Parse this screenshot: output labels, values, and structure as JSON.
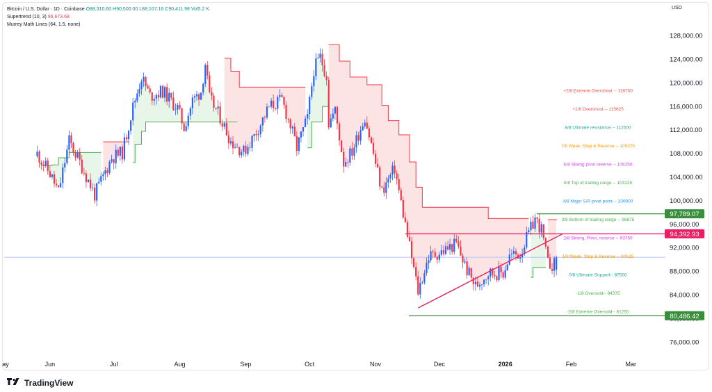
{
  "legend": {
    "symbol": "Bitcoin / U.S. Dollar · 1D · Coinbase",
    "ohlc": "O88,310.60  H90,500.00  L88,107.16  C90,411.98  Vol5.2 K",
    "supertrend": "Supertrend (10, 3)",
    "supertrend_value": "96,673.68",
    "murrey": "Murrey Math Lines (64, 1.5, none)"
  },
  "currency": "USD",
  "brand": "TradingView",
  "colors": {
    "up": "#2962ff",
    "down": "#f23645",
    "st_up": "#4caf50",
    "st_down": "#f23645",
    "st_up_fill": "#e8f5e9",
    "st_down_fill": "#fde4e4",
    "green_line": "#388e3c",
    "pink_line": "#e91e63",
    "blue_line": "#b3c6f5"
  },
  "chart_data": {
    "type": "candlestick",
    "y_axis": {
      "ticks": [
        "128,000.00",
        "124,000.00",
        "120,000.00",
        "116,000.00",
        "112,000.00",
        "108,000.00",
        "104,000.00",
        "100,000.00",
        "96,000.00",
        "92,000.00",
        "88,000.00",
        "84,000.00",
        "80,000.00",
        "76,000.00"
      ],
      "tick_values": [
        128000,
        124000,
        120000,
        116000,
        112000,
        108000,
        104000,
        100000,
        96000,
        92000,
        88000,
        84000,
        80000,
        76000
      ]
    },
    "x_axis": {
      "labels": [
        "ay",
        "Jun",
        "Jul",
        "Aug",
        "Sep",
        "Oct",
        "Nov",
        "Dec",
        "2026",
        "Feb",
        "Mar"
      ],
      "bold": "2026"
    },
    "price_tags": [
      {
        "label": "97,789.07",
        "value": 97789.07,
        "color": "#388e3c"
      },
      {
        "label": "94,392.93",
        "value": 94392.93,
        "color": "#e91e63"
      },
      {
        "label": "80,486.42",
        "value": 80486.42,
        "color": "#388e3c"
      }
    ],
    "murrey_levels": [
      {
        "label": "+2/8 Extreme Overshoot --  118750",
        "value": 118750,
        "color": "#ef5350"
      },
      {
        "label": "+1/8 Overshoot --  115625",
        "value": 115625,
        "color": "#ef5350"
      },
      {
        "label": "8/8 Ultimate resistance --  112500",
        "value": 112500,
        "color": "#26a69a"
      },
      {
        "label": "7/8 Weak, Stop & Reverse --  109375",
        "value": 109375,
        "color": "#ff9800"
      },
      {
        "label": "6/8 Strong pivot reverse --  106250",
        "value": 106250,
        "color": "#e040fb"
      },
      {
        "label": "5/8 Top of trading range --  103125",
        "value": 103125,
        "color": "#4caf50"
      },
      {
        "label": "4/8 Major S/R pivot point --  100000",
        "value": 100000,
        "color": "#2196f3"
      },
      {
        "label": "3/8 Bottom of trading range --  96875",
        "value": 96875,
        "color": "#4caf50"
      },
      {
        "label": "2/8 Strong, Pivot, reverse --  93750",
        "value": 93750,
        "color": "#e040fb"
      },
      {
        "label": "1/8 Weak, Stop & Reverse --  90625",
        "value": 90625,
        "color": "#ff9800"
      },
      {
        "label": "0/8 Ultimate Support--  87500",
        "value": 87500,
        "color": "#26a69a"
      },
      {
        "label": "-1/8 Oversold--  84375",
        "value": 84375,
        "color": "#4caf50"
      },
      {
        "label": "-2/8 Extreme Oversold--  81250",
        "value": 81250,
        "color": "#4caf50"
      }
    ],
    "horizontal_lines": [
      {
        "value": 97789.07,
        "color": "#388e3c"
      },
      {
        "value": 94392.93,
        "color": "#e91e63"
      },
      {
        "value": 80486.42,
        "color": "#388e3c"
      },
      {
        "value": 90411.98,
        "color": "#b3c6f5"
      }
    ],
    "trendline": {
      "from": {
        "x": "2025-11-21",
        "y": 81800
      },
      "to": {
        "x": "2026-01-28",
        "y": 94400
      },
      "color": "#e91e63"
    },
    "close_anchors": [
      [
        "2025-05-26",
        108000
      ],
      [
        "2025-06-01",
        104600
      ],
      [
        "2025-06-05",
        101500
      ],
      [
        "2025-06-10",
        110200
      ],
      [
        "2025-06-16",
        105800
      ],
      [
        "2025-06-22",
        101000
      ],
      [
        "2025-06-30",
        107300
      ],
      [
        "2025-07-05",
        108200
      ],
      [
        "2025-07-10",
        116000
      ],
      [
        "2025-07-14",
        121000
      ],
      [
        "2025-07-18",
        117800
      ],
      [
        "2025-07-24",
        118600
      ],
      [
        "2025-07-31",
        115700
      ],
      [
        "2025-08-03",
        112500
      ],
      [
        "2025-08-07",
        117000
      ],
      [
        "2025-08-11",
        118600
      ],
      [
        "2025-08-13",
        123300
      ],
      [
        "2025-08-15",
        117400
      ],
      [
        "2025-08-20",
        114200
      ],
      [
        "2025-08-25",
        110100
      ],
      [
        "2025-08-31",
        108300
      ],
      [
        "2025-09-05",
        111000
      ],
      [
        "2025-09-12",
        115900
      ],
      [
        "2025-09-18",
        117100
      ],
      [
        "2025-09-22",
        112700
      ],
      [
        "2025-09-25",
        109000
      ],
      [
        "2025-09-30",
        114000
      ],
      [
        "2025-10-03",
        122300
      ],
      [
        "2025-10-06",
        124400
      ],
      [
        "2025-10-09",
        121300
      ],
      [
        "2025-10-10",
        113200
      ],
      [
        "2025-10-13",
        115300
      ],
      [
        "2025-10-17",
        106500
      ],
      [
        "2025-10-21",
        108400
      ],
      [
        "2025-10-27",
        114300
      ],
      [
        "2025-11-04",
        101600
      ],
      [
        "2025-11-10",
        105500
      ],
      [
        "2025-11-13",
        99700
      ],
      [
        "2025-11-17",
        92200
      ],
      [
        "2025-11-21",
        84600
      ],
      [
        "2025-11-26",
        90500
      ],
      [
        "2025-12-02",
        91300
      ],
      [
        "2025-12-09",
        92700
      ],
      [
        "2025-12-14",
        88200
      ],
      [
        "2025-12-18",
        85500
      ],
      [
        "2025-12-24",
        87800
      ],
      [
        "2025-12-31",
        87700
      ],
      [
        "2026-01-03",
        90600
      ],
      [
        "2026-01-08",
        91000
      ],
      [
        "2026-01-13",
        95300
      ],
      [
        "2026-01-15",
        97000
      ],
      [
        "2026-01-18",
        95100
      ],
      [
        "2026-01-21",
        89300
      ],
      [
        "2026-01-24",
        89200
      ],
      [
        "2026-01-25",
        90400
      ]
    ],
    "supertrend_segments": [
      {
        "dir": "up",
        "points": [
          [
            "2025-05-28",
            106000
          ],
          [
            "2025-06-02",
            106100
          ],
          [
            "2025-06-05",
            107300
          ],
          [
            "2025-06-10",
            108200
          ],
          [
            "2025-06-25",
            108200
          ]
        ]
      },
      {
        "dir": "down",
        "points": [
          [
            "2025-06-26",
            110000
          ],
          [
            "2025-07-08",
            110000
          ]
        ]
      },
      {
        "dir": "up",
        "points": [
          [
            "2025-07-10",
            106500
          ],
          [
            "2025-07-11",
            109600
          ],
          [
            "2025-07-14",
            111800
          ],
          [
            "2025-07-16",
            113400
          ],
          [
            "2025-08-28",
            113400
          ]
        ]
      },
      {
        "dir": "down",
        "points": [
          [
            "2025-08-22",
            124200
          ],
          [
            "2025-08-25",
            122000
          ],
          [
            "2025-08-29",
            119300
          ],
          [
            "2025-09-29",
            119300
          ]
        ]
      },
      {
        "dir": "up",
        "points": [
          [
            "2025-09-30",
            109000
          ],
          [
            "2025-10-02",
            113400
          ],
          [
            "2025-10-07",
            116000
          ],
          [
            "2025-10-10",
            116000
          ]
        ]
      },
      {
        "dir": "down",
        "points": [
          [
            "2025-10-10",
            126500
          ],
          [
            "2025-10-15",
            123700
          ],
          [
            "2025-10-20",
            121000
          ],
          [
            "2025-10-28",
            119700
          ],
          [
            "2025-11-04",
            116200
          ],
          [
            "2025-11-07",
            113600
          ],
          [
            "2025-11-12",
            111200
          ],
          [
            "2025-11-17",
            106600
          ],
          [
            "2025-11-20",
            102300
          ],
          [
            "2025-11-23",
            98900
          ],
          [
            "2025-12-18",
            98900
          ],
          [
            "2025-12-24",
            97000
          ],
          [
            "2026-01-12",
            97000
          ]
        ]
      },
      {
        "dir": "up",
        "points": [
          [
            "2026-01-13",
            87000
          ],
          [
            "2026-01-14",
            88700
          ],
          [
            "2026-01-20",
            88700
          ]
        ]
      },
      {
        "dir": "down",
        "points": [
          [
            "2026-01-21",
            96800
          ],
          [
            "2026-01-25",
            96700
          ]
        ]
      }
    ]
  }
}
